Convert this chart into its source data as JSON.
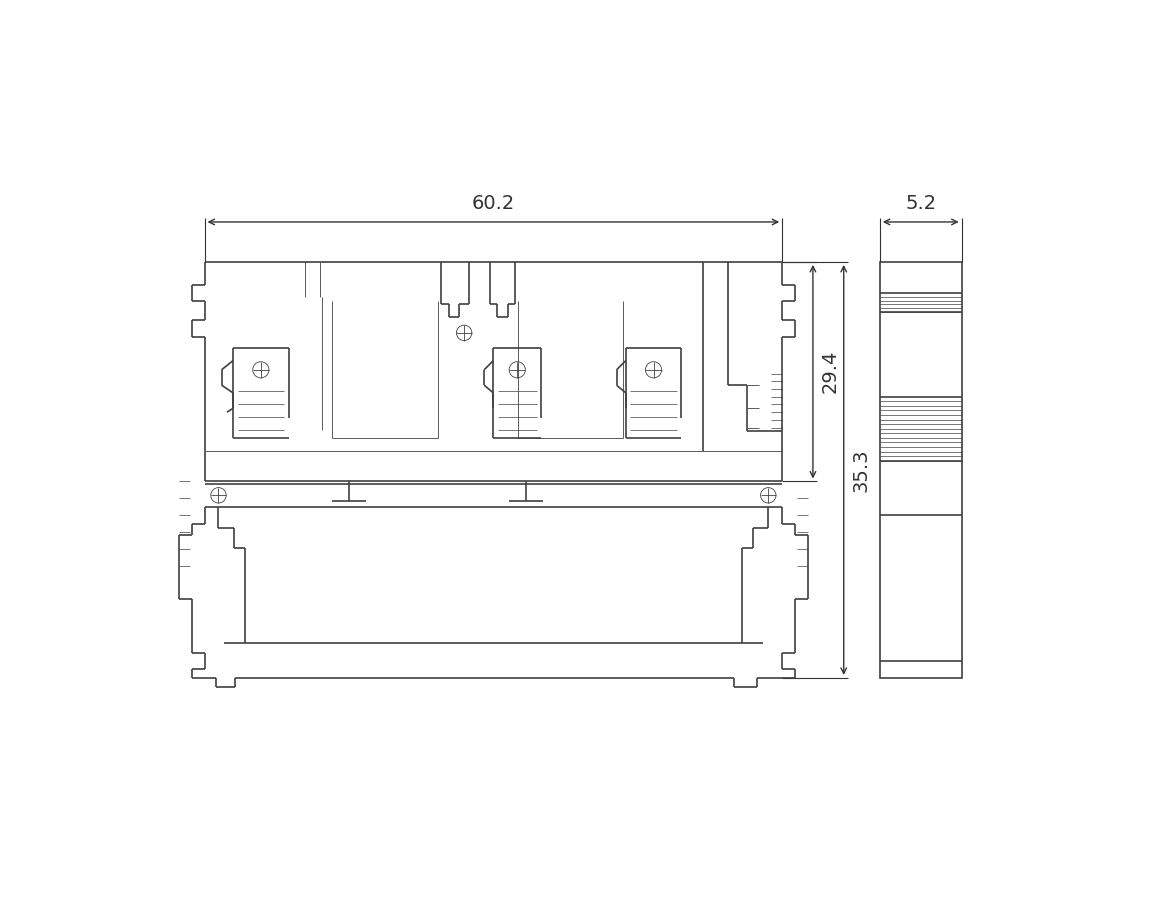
{
  "background_color": "#ffffff",
  "line_color": "#404040",
  "dim_color": "#333333",
  "lw": 1.2,
  "tlw": 0.6,
  "dim_60_2": "60.2",
  "dim_5_2": "5.2",
  "dim_29_4": "29.4",
  "dim_35_3": "35.3",
  "font_size": 14,
  "fig_w": 11.52,
  "fig_h": 9.0,
  "xlim": [
    0,
    11.52
  ],
  "ylim": [
    0,
    9.0
  ]
}
